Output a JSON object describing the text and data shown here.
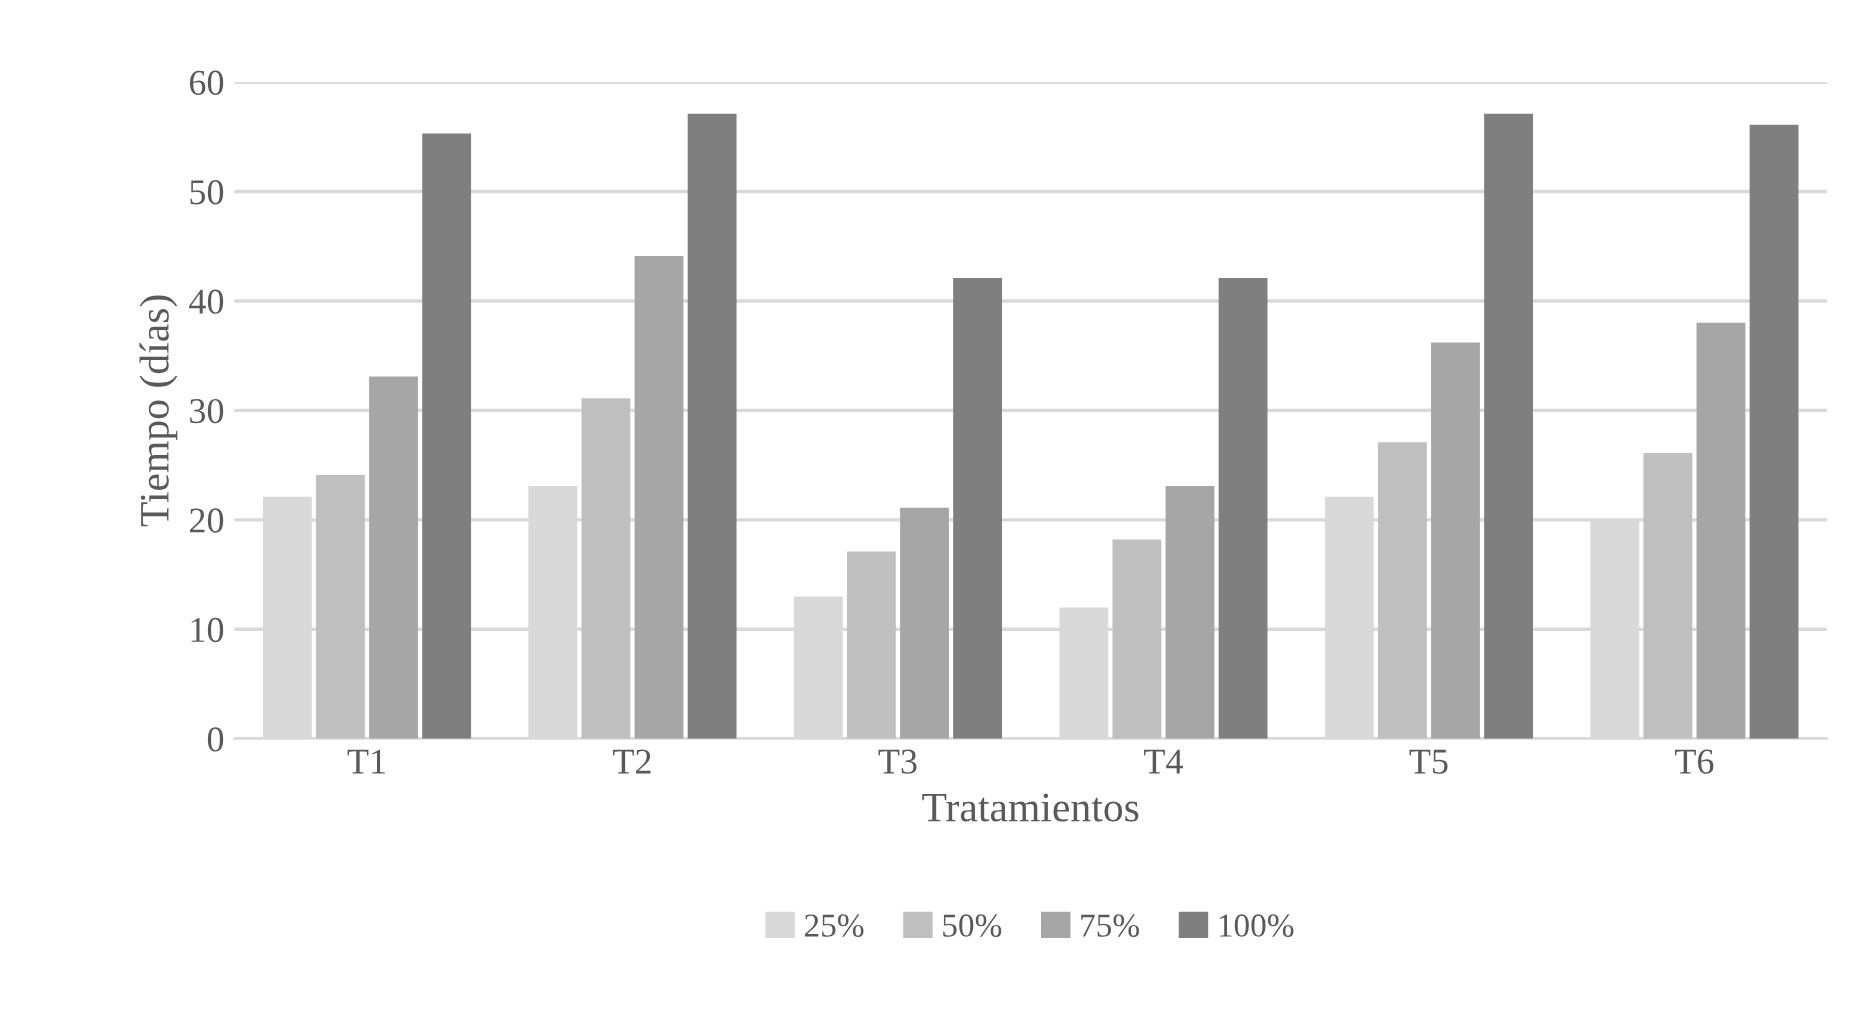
{
  "chart_data": {
    "type": "bar",
    "xlabel": "Tratamientos",
    "ylabel": "Tiempo (días)",
    "categories": [
      "T1",
      "T2",
      "T3",
      "T4",
      "T5",
      "T6"
    ],
    "series": [
      {
        "name": "25%",
        "color": "#d9d9d9",
        "values": [
          22.1,
          23.1,
          13,
          12,
          22.1,
          20
        ]
      },
      {
        "name": "50%",
        "color": "#bfbfbf",
        "values": [
          24.1,
          31.1,
          17.1,
          18.2,
          27.1,
          26.1
        ]
      },
      {
        "name": "75%",
        "color": "#a6a6a6",
        "values": [
          33.1,
          44.1,
          21.1,
          23.1,
          36.2,
          38
        ]
      },
      {
        "name": "100%",
        "color": "#7f7f7f",
        "values": [
          55.3,
          57.1,
          42.1,
          42.1,
          57.1,
          56.1
        ]
      }
    ],
    "ylim": [
      0,
      60
    ],
    "yticks": [
      0,
      10,
      20,
      30,
      40,
      50,
      60
    ],
    "grid": "y",
    "legend": "bottom"
  }
}
